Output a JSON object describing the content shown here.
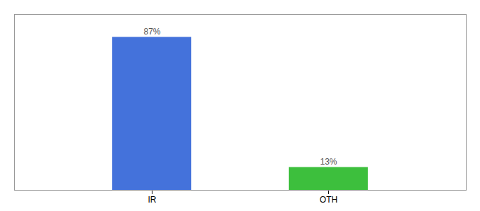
{
  "chart_data": {
    "type": "bar",
    "categories": [
      "IR",
      "OTH"
    ],
    "values": [
      87,
      13
    ],
    "colors": [
      "#4472db",
      "#3dbf3d"
    ],
    "ylim": [
      0,
      100
    ],
    "data_labels": true,
    "value_labels": [
      "87%",
      "13%"
    ],
    "tick_labels": "x"
  }
}
